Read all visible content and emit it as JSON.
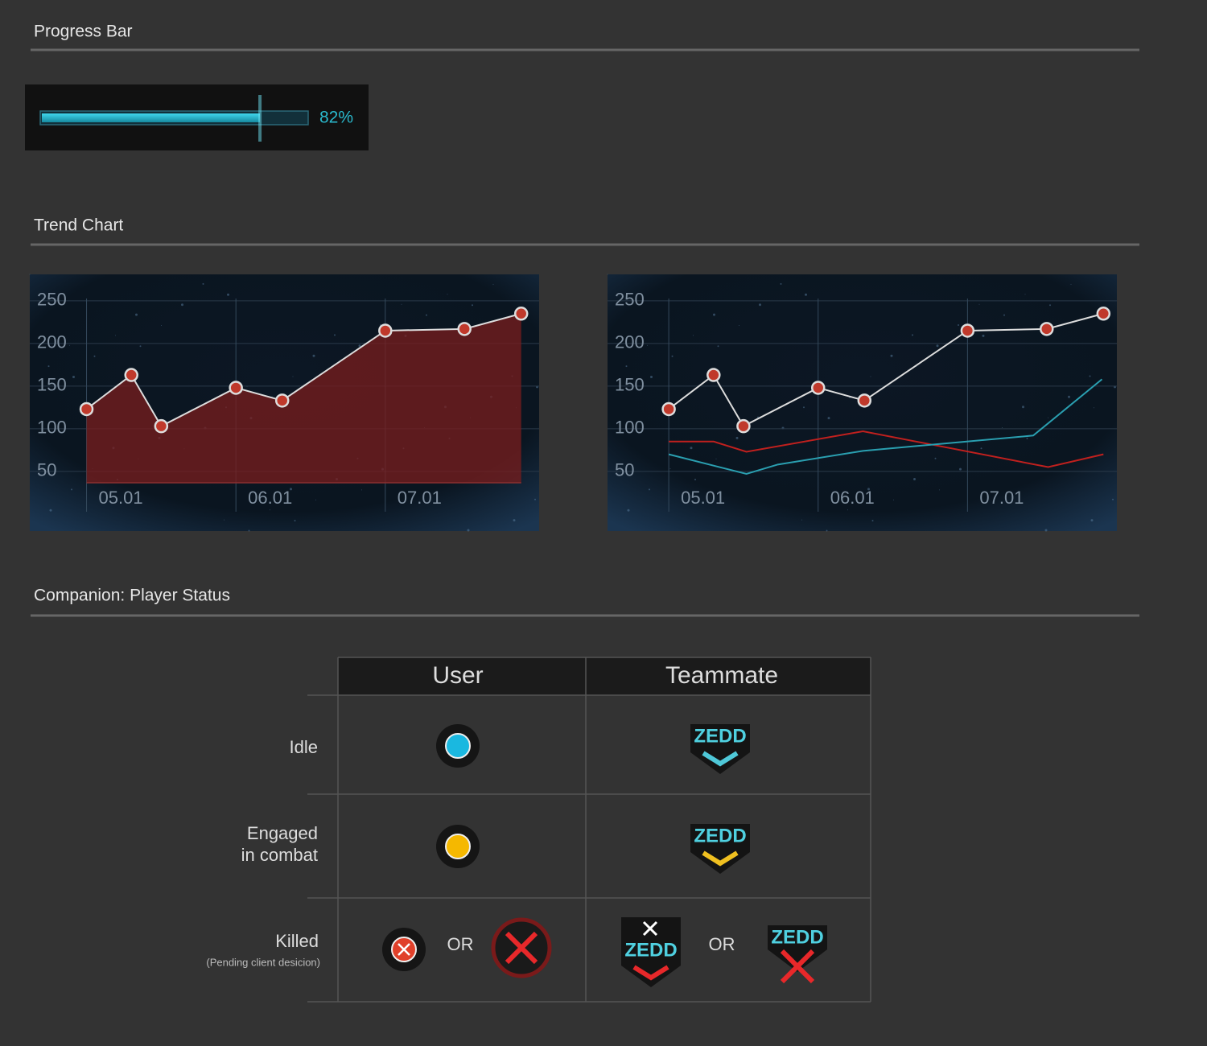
{
  "sections": [
    "Progress Bar",
    "Trend Chart",
    "Companion: Player Status"
  ],
  "progress": {
    "value": 82,
    "value_label": "82%",
    "xlim": [
      0,
      100
    ]
  },
  "chart_data": [
    {
      "type": "area",
      "xlim": [
        4.62,
        8.03
      ],
      "ylim": [
        -20,
        281
      ],
      "yticks": [
        50,
        100,
        150,
        200,
        250
      ],
      "xticks": [
        {
          "value": 5,
          "label": "05.01"
        },
        {
          "value": 6,
          "label": "06.01"
        },
        {
          "value": 7,
          "label": "07.01"
        }
      ],
      "grid": true,
      "series": [
        {
          "color": "#dddddd",
          "fill": "#7a1e1e",
          "markers": true,
          "x": [
            5,
            5.3,
            5.5,
            6,
            6.31,
            7,
            7.53,
            7.91
          ],
          "values": [
            123,
            163,
            103,
            148,
            133,
            215,
            217,
            235
          ]
        }
      ]
    },
    {
      "type": "line",
      "xlim": [
        4.59,
        8.0
      ],
      "ylim": [
        -20,
        281
      ],
      "yticks": [
        50,
        100,
        150,
        200,
        250
      ],
      "xticks": [
        {
          "value": 5,
          "label": "05.01"
        },
        {
          "value": 6,
          "label": "06.01"
        },
        {
          "value": 7,
          "label": "07.01"
        }
      ],
      "grid": true,
      "series": [
        {
          "color": "#dddddd",
          "markers": true,
          "x": [
            5,
            5.3,
            5.5,
            6,
            6.31,
            7,
            7.53,
            7.91
          ],
          "values": [
            123,
            163,
            103,
            148,
            133,
            215,
            217,
            235
          ]
        },
        {
          "color": "#c0201e",
          "x": [
            5,
            5.3,
            5.52,
            6.3,
            7.54,
            7.91
          ],
          "values": [
            85,
            85,
            73,
            97,
            55,
            70
          ]
        },
        {
          "color": "#2a9fb0",
          "x": [
            5,
            5.52,
            5.73,
            6.3,
            7.44,
            7.9
          ],
          "values": [
            70,
            47,
            58,
            74,
            92,
            158
          ]
        }
      ]
    }
  ],
  "status_table": {
    "columns": [
      "User",
      "Teammate"
    ],
    "rows": [
      {
        "label": [
          "Idle"
        ],
        "badges": [
          "ZEDD"
        ]
      },
      {
        "label": [
          "Engaged",
          "in combat"
        ],
        "badges": [
          "ZEDD"
        ]
      },
      {
        "label": [
          "Killed"
        ],
        "note": "(Pending client desicion)",
        "user_or": "OR",
        "teammate_or": "OR",
        "badges": [
          "ZEDD",
          "ZEDD"
        ]
      }
    ]
  }
}
